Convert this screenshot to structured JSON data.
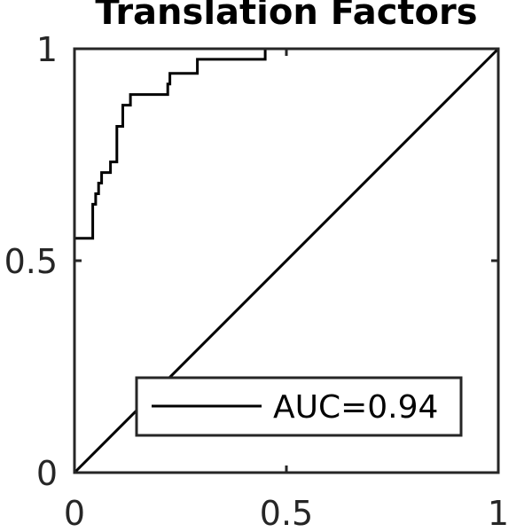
{
  "chart_data": {
    "type": "line",
    "title": "Translation Factors",
    "xlabel": "",
    "ylabel": "",
    "xlim": [
      0,
      1
    ],
    "ylim": [
      0,
      1
    ],
    "grid": false,
    "legend_position": "bottom-right",
    "x_ticks": [
      0,
      0.5,
      1
    ],
    "y_ticks": [
      0,
      0.5,
      1
    ],
    "x_tick_labels": [
      "0",
      "0.5",
      "1"
    ],
    "y_tick_labels": [
      "0",
      "0.5",
      "1"
    ],
    "series": [
      {
        "name": "AUC=0.94",
        "color": "#000000",
        "x": [
          0,
          0,
          0.043,
          0.043,
          0.05,
          0.05,
          0.057,
          0.057,
          0.064,
          0.064,
          0.085,
          0.085,
          0.1,
          0.1,
          0.107,
          0.107,
          0.114,
          0.114,
          0.125,
          0.125,
          0.132,
          0.132,
          0.138,
          0.138,
          0.22,
          0.22,
          0.225,
          0.225,
          0.29,
          0.29,
          0.45,
          0.45,
          1
        ],
        "y": [
          0,
          0.553,
          0.553,
          0.633,
          0.633,
          0.658,
          0.658,
          0.683,
          0.683,
          0.708,
          0.708,
          0.733,
          0.733,
          0.817,
          0.817,
          0.817,
          0.817,
          0.867,
          0.867,
          0.867,
          0.867,
          0.892,
          0.892,
          0.892,
          0.892,
          0.917,
          0.917,
          0.942,
          0.942,
          0.975,
          0.975,
          1,
          1
        ]
      },
      {
        "name": "",
        "color": "#000000",
        "x": [
          0,
          1
        ],
        "y": [
          0,
          1
        ]
      }
    ]
  }
}
